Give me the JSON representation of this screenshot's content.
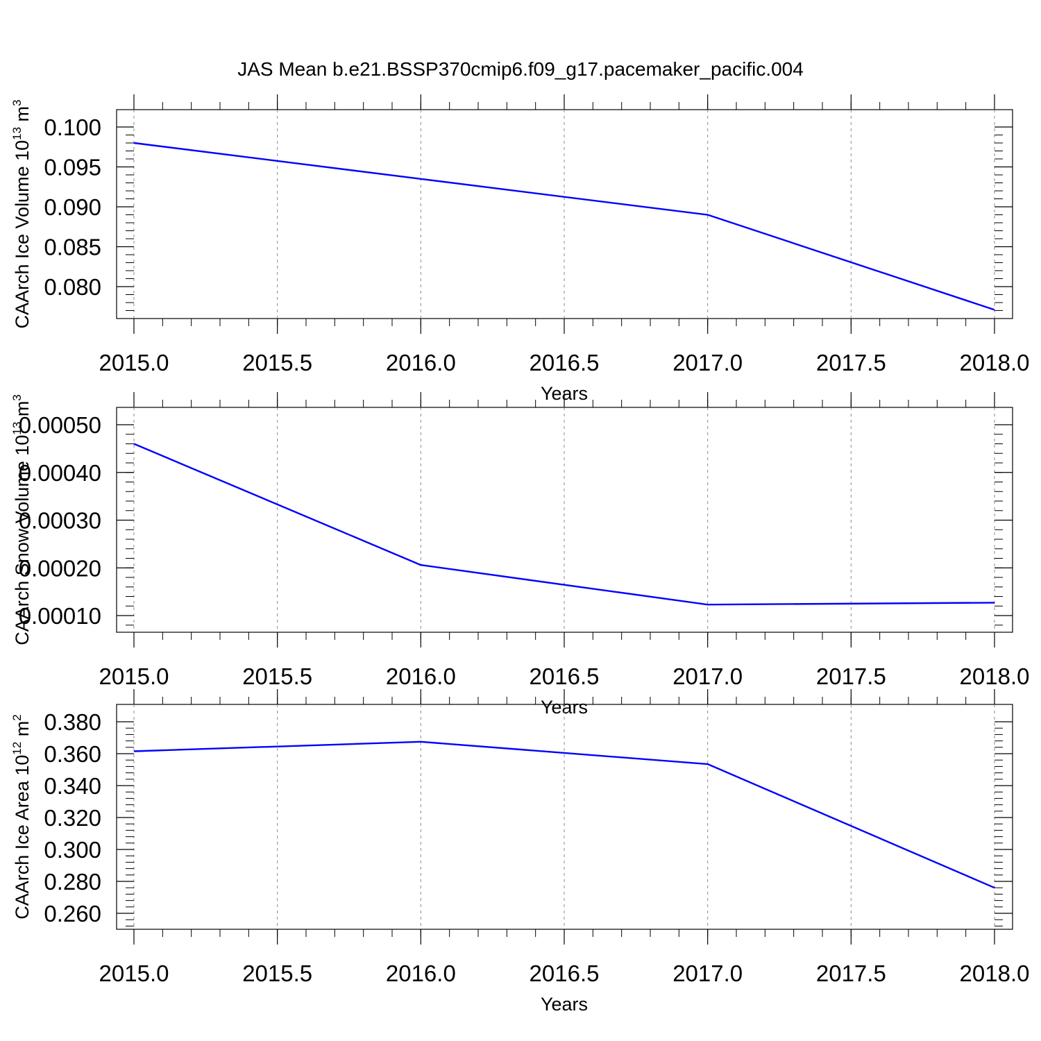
{
  "title": "JAS Mean b.e21.BSSP370cmip6.f09_g17.pacemaker_pacific.004",
  "line_color": "#0000ff",
  "chart_data": [
    {
      "type": "line",
      "ylabel_main": "CAArch Ice Volume 10",
      "ylabel_exp": "13",
      "ylabel_unit": "m",
      "ylabel_unit_exp": "3",
      "xlabel": "Years",
      "xlim": [
        2015.0,
        2018.0
      ],
      "ylim": [
        0.076,
        0.1
      ],
      "x_ticks": [
        "2015.0",
        "2015.5",
        "2016.0",
        "2016.5",
        "2017.0",
        "2017.5",
        "2018.0"
      ],
      "y_ticks": [
        0.1,
        0.095,
        0.09,
        0.085,
        0.08
      ],
      "y_tick_labels": [
        "0.100",
        "0.095",
        "0.090",
        "0.085",
        "0.080"
      ],
      "x": [
        2015,
        2016,
        2017,
        2018
      ],
      "y": [
        0.098,
        0.0935,
        0.089,
        0.0771
      ]
    },
    {
      "type": "line",
      "ylabel_main": "CAArch Snow Volume 10",
      "ylabel_exp": "13",
      "ylabel_unit": "m",
      "ylabel_unit_exp": "3",
      "xlabel": "Years",
      "xlim": [
        2015.0,
        2018.0
      ],
      "ylim": [
        0.0001,
        0.0005
      ],
      "x_ticks": [
        "2015.0",
        "2015.5",
        "2016.0",
        "2016.5",
        "2017.0",
        "2017.5",
        "2018.0"
      ],
      "y_ticks": [
        0.0005,
        0.0004,
        0.0003,
        0.0002,
        0.0001
      ],
      "y_tick_labels": [
        "0.00050",
        "0.00040",
        "0.00030",
        "0.00020",
        "0.00010"
      ],
      "x": [
        2015,
        2016,
        2017,
        2018
      ],
      "y": [
        0.00046,
        0.000206,
        0.000123,
        0.000127
      ]
    },
    {
      "type": "line",
      "ylabel_main": "CAArch Ice Area 10",
      "ylabel_exp": "12",
      "ylabel_unit": "m",
      "ylabel_unit_exp": "2",
      "xlabel": "Years",
      "xlim": [
        2015.0,
        2018.0
      ],
      "ylim": [
        0.26,
        0.38
      ],
      "x_ticks": [
        "2015.0",
        "2015.5",
        "2016.0",
        "2016.5",
        "2017.0",
        "2017.5",
        "2018.0"
      ],
      "y_ticks": [
        0.38,
        0.36,
        0.34,
        0.32,
        0.3,
        0.28,
        0.26
      ],
      "y_tick_labels": [
        "0.380",
        "0.360",
        "0.340",
        "0.320",
        "0.300",
        "0.280",
        "0.260"
      ],
      "x": [
        2015,
        2016,
        2017,
        2018
      ],
      "y": [
        0.3615,
        0.3675,
        0.3535,
        0.276
      ]
    }
  ]
}
